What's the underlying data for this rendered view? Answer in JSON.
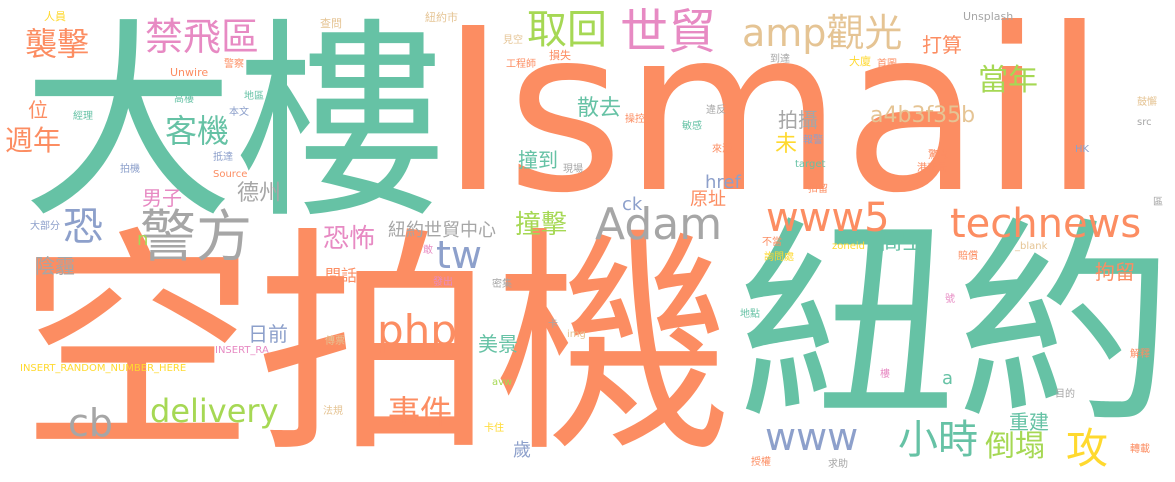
{
  "colors": {
    "teal": "#66c2a5",
    "orange": "#fc8d62",
    "gray": "#a6a6a6",
    "green": "#a6d854",
    "pink": "#e78ac3",
    "yellow": "#ffd92f",
    "tan": "#e5c494",
    "blue": "#8da0cb"
  },
  "words": {
    "ismail": "Ismail",
    "da_lou": "大樓",
    "kong_pai_ji": "空拍機",
    "niu_yue": "紐約",
    "technews": "technews",
    "www5": "www5",
    "jing_fang": "警方",
    "adam": "Adam",
    "php": "php",
    "delivery": "delivery",
    "amp_guan_guang": "amp觀光",
    "shi_mao": "世貿",
    "qu_hui": "取回",
    "jin_fei_qu": "禁飛區",
    "xi_ji": "襲擊",
    "tw": "tw",
    "www": "www",
    "xiao_shi": "小時",
    "gong": "攻",
    "kong_top": "恐",
    "cb": "cb",
    "ke_ji": "客機",
    "zhou_nian": "週年",
    "dang_nian": "當年",
    "a4b3f35b": "a4b3f35b",
    "kong_bu": "恐怖",
    "zhuang_ji": "撞擊",
    "shi_jian": "事件",
    "dao_ta": "倒塌",
    "san_qu": "散去",
    "pai_she": "拍攝",
    "da_suan": "打算",
    "ren_yuan": "人員",
    "zha_wen": "查問",
    "niu_yue_shi": "紐約市",
    "unsplash": "Unsplash",
    "jian_kong": "見空",
    "sun_shi": "損失",
    "gong_cheng_shi": "工程師",
    "da_ji": "大廈",
    "dao_da": "到達",
    "shou_tu": "首圖",
    "unwire": "Unwire",
    "jing_cha": "警察",
    "gao_lou": "高樓",
    "di_qu": "地區",
    "ben_wen": "本文",
    "jing_li": "經理",
    "wei": "位",
    "wei_fan": "違反",
    "cao_kong": "操控",
    "min_gan": "敏感",
    "bao_jing": "報警",
    "jing_jue": "驚覺",
    "gang_wu_ju": "港務局",
    "gu_xie": "鼓懈",
    "src": "src",
    "hk": "HK",
    "zhuang_dao": "撞到",
    "xian_chang": "現場",
    "lai_yuan": "來源",
    "target": "target",
    "pai_ji": "拍機",
    "di_da": "抵達",
    "source": "Source",
    "de_zhou": "德州",
    "nan_zi": "男子",
    "wei_wei": "未",
    "href": "href",
    "yuan_zhi": "原址",
    "kou_liu": "扣留",
    "ck": "ck",
    "qu": "區",
    "gao_kong": "高空",
    "blank": "_blank",
    "zoneid": "zoneid",
    "da_bu_fen": "大部分",
    "n": "n",
    "niu_yue_shi_mao": "紐約世貿中心",
    "bu_dang": "不當",
    "gan": "敢",
    "ju_liu": "拘留",
    "xun_wen_chu": "詢問處",
    "pei_chang": "賠償",
    "yin_mai": "陰霾",
    "wen_hua": "問話",
    "fa_chu": "發出",
    "mi_ji": "密集",
    "hao": "號",
    "ri_qian": "日前",
    "di_dian": "地點",
    "mei_jing": "美景",
    "ka": "卡",
    "img": "img",
    "chuan_piao": "傳票",
    "insert_ra": "INSERT_RA",
    "insert_random": "INSERT_RANDOM_NUMBER_HERE",
    "jie_shi": "解釋",
    "a_lower": "a",
    "lou": "樓",
    "avw": "avw",
    "mu_de": "目的",
    "fa_gui": "法規",
    "chong_jian": "重建",
    "ka_zhu": "卡住",
    "sui": "歲",
    "shou_quan": "授權",
    "qiu_zhu": "求助",
    "zhuan_zai": "轉載"
  }
}
